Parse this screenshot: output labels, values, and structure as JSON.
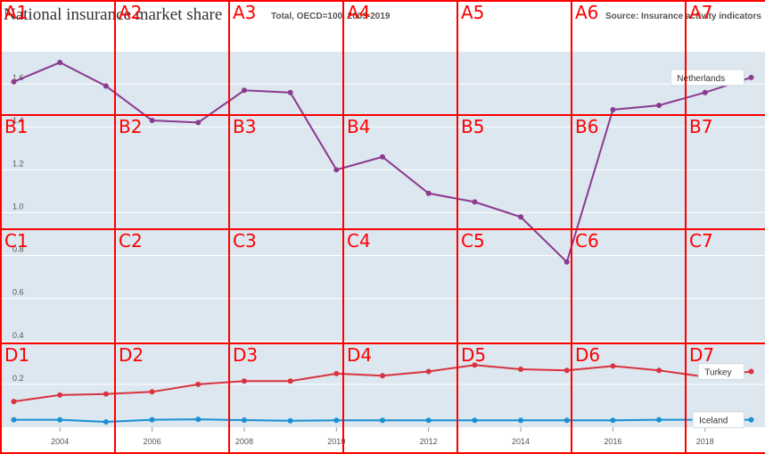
{
  "header": {
    "title": "National insurance market share",
    "subtitle": "Total, OECD=100, 2003-2019",
    "source": "Source: Insurance activity indicators"
  },
  "chart_data": {
    "type": "line",
    "x": [
      2003,
      2004,
      2005,
      2006,
      2007,
      2008,
      2009,
      2010,
      2011,
      2012,
      2013,
      2014,
      2015,
      2016,
      2017,
      2018,
      2019
    ],
    "xticks": [
      2004,
      2006,
      2008,
      2010,
      2012,
      2014,
      2016,
      2018
    ],
    "yticks": [
      0.2,
      0.4,
      0.6,
      0.8,
      1.0,
      1.2,
      1.4,
      1.6
    ],
    "ylim": [
      0,
      1.75
    ],
    "xlim": [
      2002.7,
      2019.3
    ],
    "grid": true,
    "series": [
      {
        "name": "Netherlands",
        "color": "#8b3a8f",
        "values": [
          1.61,
          1.7,
          1.59,
          1.43,
          1.42,
          1.57,
          1.56,
          1.2,
          1.26,
          1.09,
          1.05,
          0.98,
          0.77,
          1.48,
          1.5,
          1.56,
          1.63
        ]
      },
      {
        "name": "Turkey",
        "color": "#d9333f",
        "values": [
          0.12,
          0.15,
          0.155,
          0.165,
          0.2,
          0.215,
          0.215,
          0.25,
          0.24,
          0.26,
          0.29,
          0.27,
          0.265,
          0.285,
          0.265,
          0.235,
          0.26
        ]
      },
      {
        "name": "Iceland",
        "color": "#1a8fd1",
        "values": [
          0.035,
          0.035,
          0.025,
          0.035,
          0.037,
          0.033,
          0.03,
          0.032,
          0.032,
          0.032,
          0.032,
          0.032,
          0.032,
          0.032,
          0.035,
          0.035,
          0.035
        ]
      }
    ]
  },
  "colors": {
    "plot_bg": "#dce7f0",
    "grid": "#ffffff",
    "tick": "#555555",
    "overlay": "#ff0000"
  },
  "overlay_cells": [
    [
      "A1",
      "A2",
      "A3",
      "A4",
      "A5",
      "A6",
      "A7"
    ],
    [
      "B1",
      "B2",
      "B3",
      "B4",
      "B5",
      "B6",
      "B7"
    ],
    [
      "C1",
      "C2",
      "C3",
      "C4",
      "C5",
      "C6",
      "C7"
    ],
    [
      "D1",
      "D2",
      "D3",
      "D4",
      "D5",
      "D6",
      "D7"
    ]
  ]
}
